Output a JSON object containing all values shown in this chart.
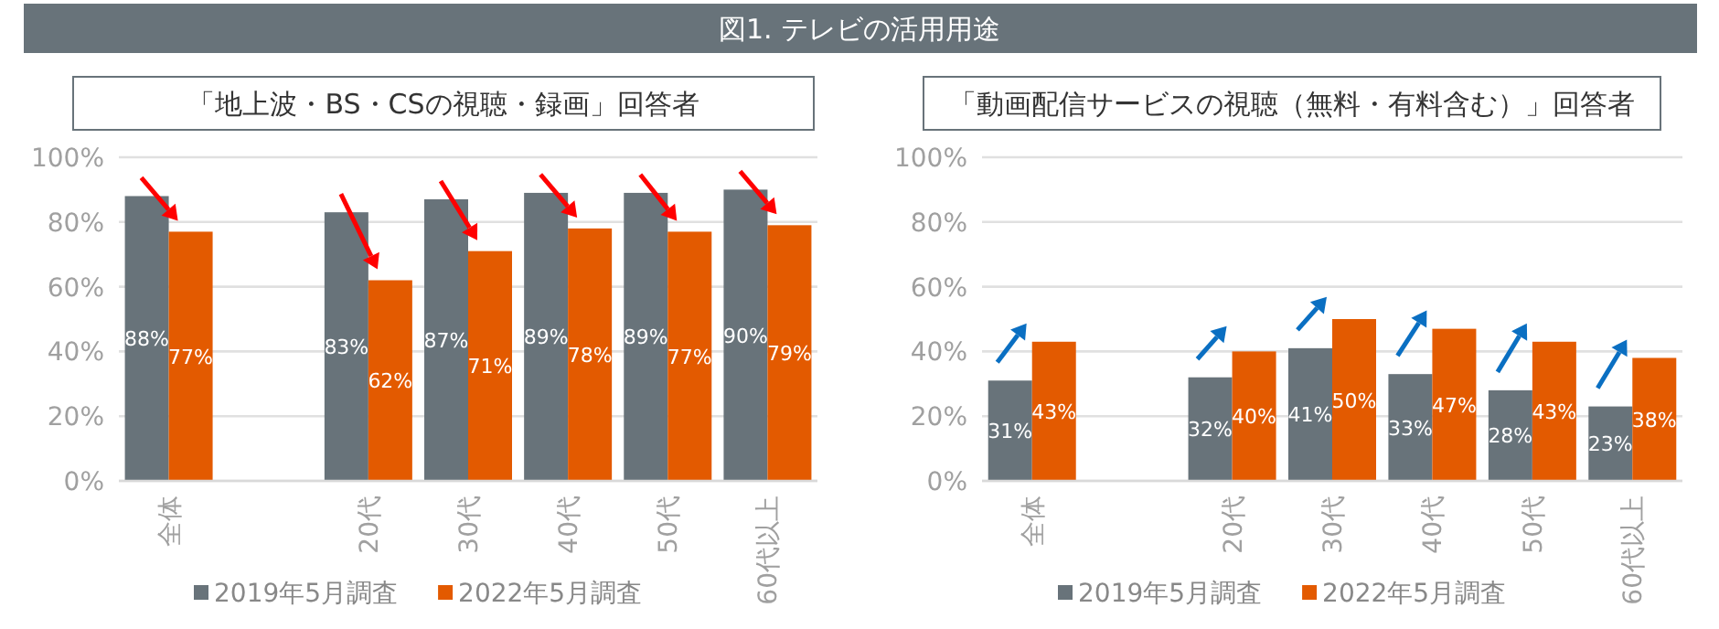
{
  "chart_data": [
    {
      "type": "bar",
      "title": "「地上波・BS・CSの視聴・録画」回答者",
      "annotations": [
        "図1. テレビの活用用途"
      ],
      "categories": [
        "全体",
        null,
        "20代",
        "30代",
        "40代",
        "50代",
        "60代以上"
      ],
      "series": [
        {
          "name": "2019年5月調査",
          "color": "#68737a",
          "values": [
            88,
            null,
            83,
            87,
            89,
            89,
            90
          ],
          "value_labels": [
            "88%",
            null,
            "83%",
            "87%",
            "89%",
            "89%",
            "90%"
          ]
        },
        {
          "name": "2022年5月調査",
          "color": "#e35a00",
          "values": [
            77,
            null,
            62,
            71,
            78,
            77,
            79
          ],
          "value_labels": [
            "77%",
            null,
            "62%",
            "71%",
            "78%",
            "77%",
            "79%"
          ]
        }
      ],
      "ylim": [
        0,
        100
      ],
      "yticks": [
        {
          "value": 0,
          "label": "0%"
        },
        {
          "value": 20,
          "label": "20%"
        },
        {
          "value": 40,
          "label": "40%"
        },
        {
          "value": 60,
          "label": "60%"
        },
        {
          "value": 80,
          "label": "80%"
        },
        {
          "value": 100,
          "label": "100%"
        }
      ],
      "grid": "y",
      "legend": "bottom"
    },
    {
      "type": "bar",
      "title": "「動画配信サービスの視聴（無料・有料含む）」回答者",
      "categories": [
        "全体",
        null,
        "20代",
        "30代",
        "40代",
        "50代",
        "60代以上"
      ],
      "series": [
        {
          "name": "2019年5月調査",
          "color": "#68737a",
          "values": [
            31,
            null,
            32,
            41,
            33,
            28,
            23
          ],
          "value_labels": [
            "31%",
            null,
            "32%",
            "41%",
            "33%",
            "28%",
            "23%"
          ]
        },
        {
          "name": "2022年5月調査",
          "color": "#e35a00",
          "values": [
            43,
            null,
            40,
            50,
            47,
            43,
            38
          ],
          "value_labels": [
            "43%",
            null,
            "40%",
            "50%",
            "47%",
            "43%",
            "38%"
          ]
        }
      ],
      "ylim": [
        0,
        100
      ],
      "yticks": [
        {
          "value": 0,
          "label": "0%"
        },
        {
          "value": 20,
          "label": "20%"
        },
        {
          "value": 40,
          "label": "40%"
        },
        {
          "value": 60,
          "label": "60%"
        },
        {
          "value": 80,
          "label": "80%"
        },
        {
          "value": 100,
          "label": "100%"
        }
      ],
      "grid": "y",
      "legend": "bottom"
    }
  ]
}
